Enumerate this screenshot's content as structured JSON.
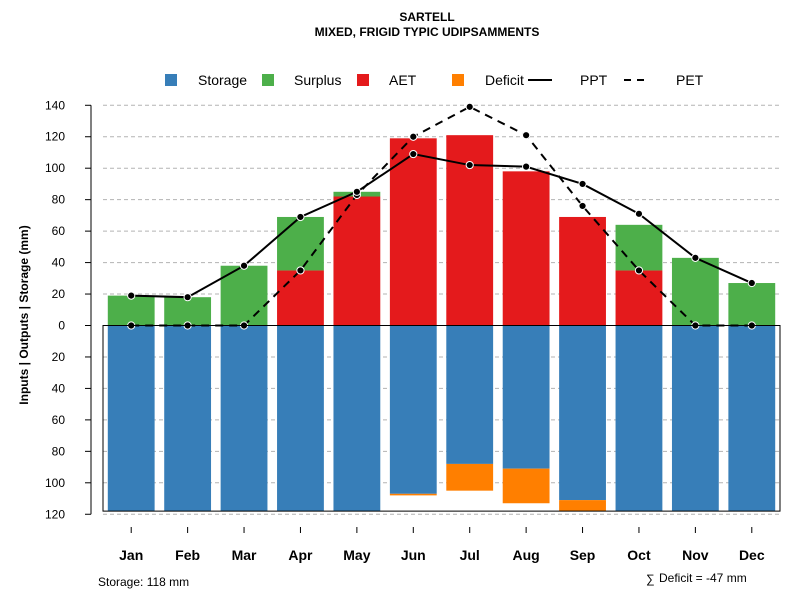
{
  "chart_data": {
    "type": "bar",
    "title": "SARTELL",
    "subtitle": "MIXED, FRIGID TYPIC UDIPSAMMENTS",
    "ylabel": "Inputs | Outputs | Storage    (mm)",
    "ylim": [
      -120,
      140
    ],
    "yticks": [
      140,
      120,
      100,
      80,
      60,
      40,
      20,
      0,
      -20,
      -40,
      -60,
      -80,
      -100,
      -120
    ],
    "ytick_labels": [
      "140",
      "120",
      "100",
      "80",
      "60",
      "40",
      "20",
      "0",
      "20",
      "40",
      "60",
      "80",
      "100",
      "120"
    ],
    "grid": true,
    "categories": [
      "Jan",
      "Feb",
      "Mar",
      "Apr",
      "May",
      "Jun",
      "Jul",
      "Aug",
      "Sep",
      "Oct",
      "Nov",
      "Dec"
    ],
    "legend": {
      "position": "top",
      "entries": [
        {
          "label": "Storage",
          "kind": "box",
          "color": "#377eb8"
        },
        {
          "label": "Surplus",
          "kind": "box",
          "color": "#4daf4a"
        },
        {
          "label": "AET",
          "kind": "box",
          "color": "#e41a1c"
        },
        {
          "label": "Deficit",
          "kind": "box",
          "color": "#ff7f00"
        },
        {
          "label": "PPT",
          "kind": "line-solid",
          "color": "#000000"
        },
        {
          "label": "PET",
          "kind": "line-dashed",
          "color": "#000000"
        }
      ]
    },
    "series": [
      {
        "name": "AET",
        "color": "#e41a1c",
        "values": [
          0,
          0,
          0,
          35,
          82,
          119,
          121,
          98,
          69,
          35,
          0,
          0
        ]
      },
      {
        "name": "Surplus",
        "color": "#4daf4a",
        "values": [
          19,
          18,
          38,
          34,
          3,
          0,
          0,
          0,
          0,
          29,
          43,
          27
        ]
      },
      {
        "name": "Storage",
        "color": "#377eb8",
        "values": [
          118,
          118,
          118,
          118,
          118,
          107,
          88,
          91,
          111,
          118,
          118,
          118
        ]
      },
      {
        "name": "Deficit",
        "color": "#ff7f00",
        "values": [
          0,
          0,
          0,
          0,
          0,
          1,
          17,
          22,
          7,
          0,
          0,
          0
        ]
      },
      {
        "name": "PPT",
        "color": "#000000",
        "style": "solid",
        "values": [
          19,
          18,
          38,
          69,
          85,
          109,
          102,
          101,
          90,
          71,
          43,
          27
        ]
      },
      {
        "name": "PET",
        "color": "#000000",
        "style": "dashed",
        "values": [
          0,
          0,
          0,
          35,
          83,
          120,
          139,
          121,
          76,
          35,
          0,
          0
        ]
      }
    ],
    "storage_capacity": 118,
    "annotations": {
      "storage": "Storage: 118 mm",
      "deficit_symbol": "∑",
      "deficit": "Deficit = -47 mm"
    }
  }
}
